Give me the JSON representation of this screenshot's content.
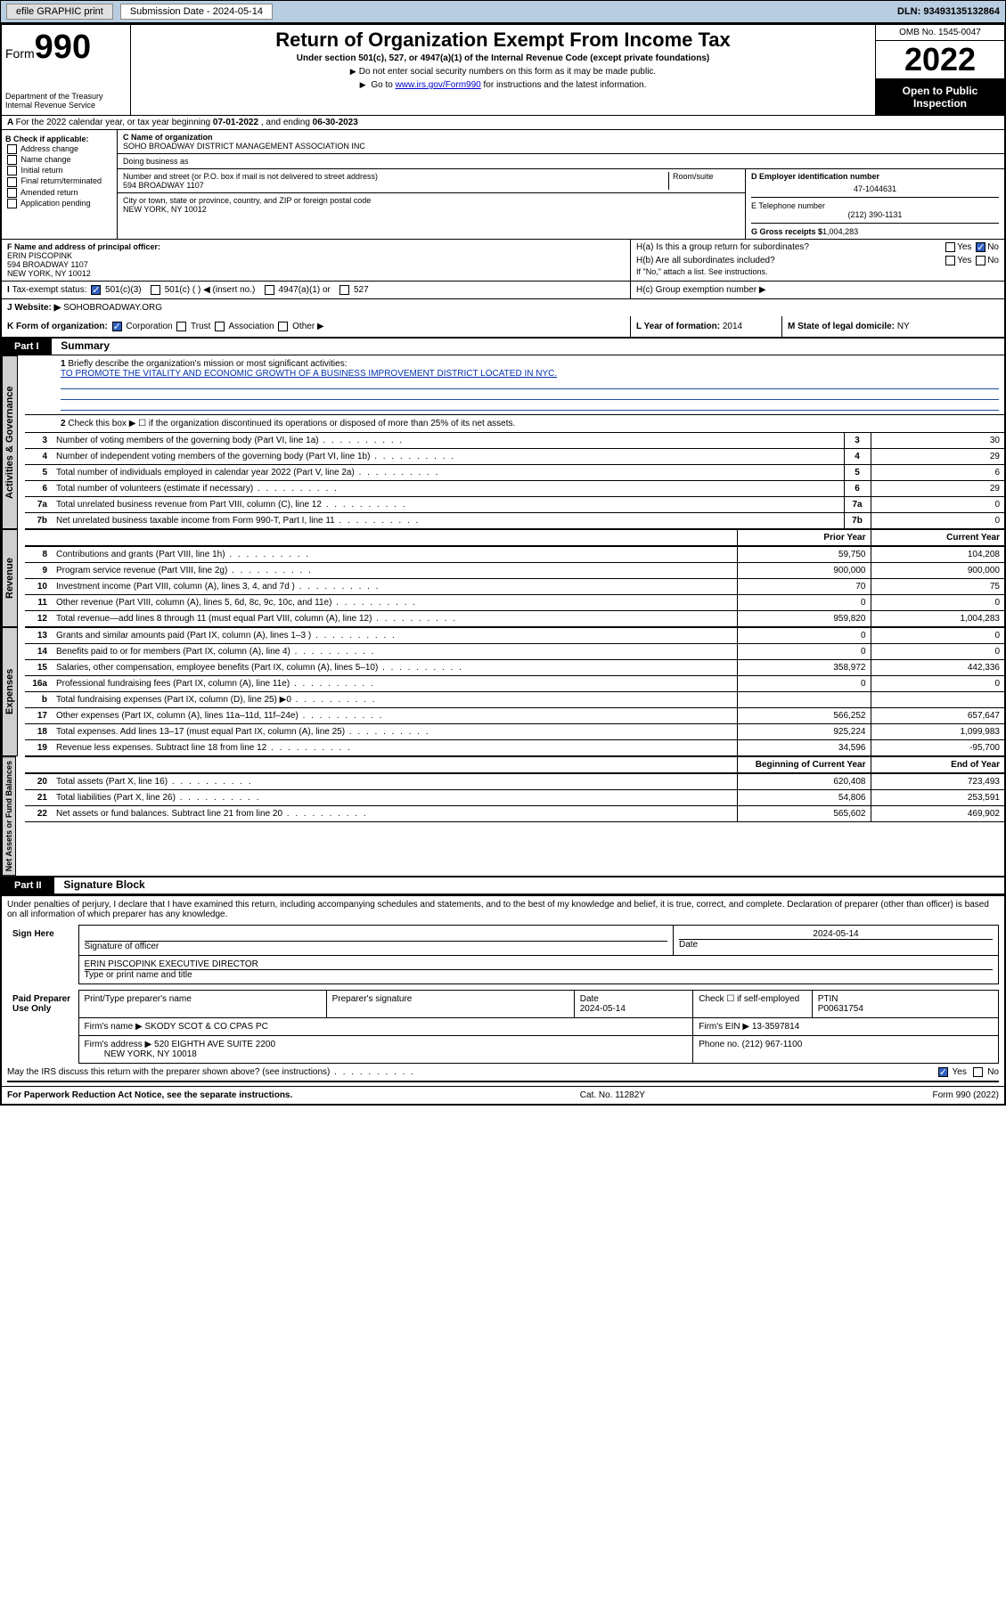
{
  "topbar": {
    "efile": "efile GRAPHIC print",
    "submission_label": "Submission Date - 2024-05-14",
    "dln": "DLN: 93493135132864"
  },
  "header": {
    "form_label": "Form",
    "form_number": "990",
    "dept": "Department of the Treasury",
    "irs": "Internal Revenue Service",
    "title": "Return of Organization Exempt From Income Tax",
    "subtitle1": "Under section 501(c), 527, or 4947(a)(1) of the Internal Revenue Code (except private foundations)",
    "subtitle2": "Do not enter social security numbers on this form as it may be made public.",
    "subtitle3_pre": "Go to ",
    "subtitle3_link": "www.irs.gov/Form990",
    "subtitle3_post": " for instructions and the latest information.",
    "omb": "OMB No. 1545-0047",
    "year": "2022",
    "inspect": "Open to Public Inspection"
  },
  "row_a": {
    "pre": "For the 2022 calendar year, or tax year beginning ",
    "begin": "07-01-2022",
    "mid": " , and ending ",
    "end": "06-30-2023"
  },
  "col_b": {
    "title": "B Check if applicable:",
    "items": [
      "Address change",
      "Name change",
      "Initial return",
      "Final return/terminated",
      "Amended return",
      "Application pending"
    ]
  },
  "col_c": {
    "name_lbl": "C Name of organization",
    "name": "SOHO BROADWAY DISTRICT MANAGEMENT ASSOCIATION INC",
    "dba_lbl": "Doing business as",
    "addr_lbl": "Number and street (or P.O. box if mail is not delivered to street address)",
    "room_lbl": "Room/suite",
    "addr": "594 BROADWAY 1107",
    "city_lbl": "City or town, state or province, country, and ZIP or foreign postal code",
    "city": "NEW YORK, NY  10012"
  },
  "col_d": {
    "ein_lbl": "D Employer identification number",
    "ein": "47-1044631",
    "phone_lbl": "E Telephone number",
    "phone": "(212) 390-1131",
    "gross_lbl": "G Gross receipts $",
    "gross": "1,004,283"
  },
  "officer": {
    "f_lbl": "F Name and address of principal officer:",
    "name": "ERIN PISCOPINK",
    "addr1": "594 BROADWAY 1107",
    "addr2": "NEW YORK, NY  10012",
    "ha": "H(a)  Is this a group return for subordinates?",
    "hb": "H(b)  Are all subordinates included?",
    "hb_note": "If \"No,\" attach a list. See instructions.",
    "hc": "H(c)  Group exemption number ▶",
    "yes": "Yes",
    "no": "No"
  },
  "row_i": {
    "lbl": "Tax-exempt status:",
    "opt1": "501(c)(3)",
    "opt2": "501(c) (  ) ◀ (insert no.)",
    "opt3": "4947(a)(1) or",
    "opt4": "527"
  },
  "row_j": {
    "lbl": "Website: ▶",
    "val": "SOHOBROADWAY.ORG"
  },
  "row_k": {
    "lbl": "K Form of organization:",
    "opts": [
      "Corporation",
      "Trust",
      "Association",
      "Other ▶"
    ],
    "l_lbl": "L Year of formation:",
    "l_val": "2014",
    "m_lbl": "M State of legal domicile:",
    "m_val": "NY"
  },
  "part1": {
    "hdr": "Part I",
    "title": "Summary",
    "q1_lbl": "Briefly describe the organization's mission or most significant activities:",
    "q1_ans": "TO PROMOTE THE VITALITY AND ECONOMIC GROWTH OF A BUSINESS IMPROVEMENT DISTRICT LOCATED IN NYC.",
    "q2": "Check this box ▶ ☐  if the organization discontinued its operations or disposed of more than 25% of its net assets."
  },
  "gov_tab": "Activities & Governance",
  "gov_rows": [
    {
      "n": "3",
      "t": "Number of voting members of the governing body (Part VI, line 1a)",
      "v": "30"
    },
    {
      "n": "4",
      "t": "Number of independent voting members of the governing body (Part VI, line 1b)",
      "v": "29"
    },
    {
      "n": "5",
      "t": "Total number of individuals employed in calendar year 2022 (Part V, line 2a)",
      "v": "6"
    },
    {
      "n": "6",
      "t": "Total number of volunteers (estimate if necessary)",
      "v": "29"
    },
    {
      "n": "7a",
      "t": "Total unrelated business revenue from Part VIII, column (C), line 12",
      "v": "0"
    },
    {
      "n": "7b",
      "t": "Net unrelated business taxable income from Form 990-T, Part I, line 11",
      "v": "0"
    }
  ],
  "rev_tab": "Revenue",
  "col_hdrs": {
    "prior": "Prior Year",
    "curr": "Current Year"
  },
  "rev_rows": [
    {
      "n": "8",
      "t": "Contributions and grants (Part VIII, line 1h)",
      "p": "59,750",
      "c": "104,208"
    },
    {
      "n": "9",
      "t": "Program service revenue (Part VIII, line 2g)",
      "p": "900,000",
      "c": "900,000"
    },
    {
      "n": "10",
      "t": "Investment income (Part VIII, column (A), lines 3, 4, and 7d )",
      "p": "70",
      "c": "75"
    },
    {
      "n": "11",
      "t": "Other revenue (Part VIII, column (A), lines 5, 6d, 8c, 9c, 10c, and 11e)",
      "p": "0",
      "c": "0"
    },
    {
      "n": "12",
      "t": "Total revenue—add lines 8 through 11 (must equal Part VIII, column (A), line 12)",
      "p": "959,820",
      "c": "1,004,283"
    }
  ],
  "exp_tab": "Expenses",
  "exp_rows": [
    {
      "n": "13",
      "t": "Grants and similar amounts paid (Part IX, column (A), lines 1–3 )",
      "p": "0",
      "c": "0"
    },
    {
      "n": "14",
      "t": "Benefits paid to or for members (Part IX, column (A), line 4)",
      "p": "0",
      "c": "0"
    },
    {
      "n": "15",
      "t": "Salaries, other compensation, employee benefits (Part IX, column (A), lines 5–10)",
      "p": "358,972",
      "c": "442,336"
    },
    {
      "n": "16a",
      "t": "Professional fundraising fees (Part IX, column (A), line 11e)",
      "p": "0",
      "c": "0"
    },
    {
      "n": "b",
      "t": "Total fundraising expenses (Part IX, column (D), line 25) ▶0",
      "p": "",
      "c": ""
    },
    {
      "n": "17",
      "t": "Other expenses (Part IX, column (A), lines 11a–11d, 11f–24e)",
      "p": "566,252",
      "c": "657,647"
    },
    {
      "n": "18",
      "t": "Total expenses. Add lines 13–17 (must equal Part IX, column (A), line 25)",
      "p": "925,224",
      "c": "1,099,983"
    },
    {
      "n": "19",
      "t": "Revenue less expenses. Subtract line 18 from line 12",
      "p": "34,596",
      "c": "-95,700"
    }
  ],
  "net_tab": "Net Assets or Fund Balances",
  "net_hdrs": {
    "prior": "Beginning of Current Year",
    "curr": "End of Year"
  },
  "net_rows": [
    {
      "n": "20",
      "t": "Total assets (Part X, line 16)",
      "p": "620,408",
      "c": "723,493"
    },
    {
      "n": "21",
      "t": "Total liabilities (Part X, line 26)",
      "p": "54,806",
      "c": "253,591"
    },
    {
      "n": "22",
      "t": "Net assets or fund balances. Subtract line 21 from line 20",
      "p": "565,602",
      "c": "469,902"
    }
  ],
  "part2": {
    "hdr": "Part II",
    "title": "Signature Block",
    "decl": "Under penalties of perjury, I declare that I have examined this return, including accompanying schedules and statements, and to the best of my knowledge and belief, it is true, correct, and complete. Declaration of preparer (other than officer) is based on all information of which preparer has any knowledge."
  },
  "sign": {
    "here": "Sign Here",
    "sig_lbl": "Signature of officer",
    "date_lbl": "Date",
    "date": "2024-05-14",
    "name": "ERIN PISCOPINK  EXECUTIVE DIRECTOR",
    "name_lbl": "Type or print name and title"
  },
  "paid": {
    "title": "Paid Preparer Use Only",
    "prep_name_lbl": "Print/Type preparer's name",
    "prep_sig_lbl": "Preparer's signature",
    "date_lbl": "Date",
    "date": "2024-05-14",
    "check_lbl": "Check ☐ if self-employed",
    "ptin_lbl": "PTIN",
    "ptin": "P00631754",
    "firm_name_lbl": "Firm's name    ▶",
    "firm_name": "SKODY SCOT & CO CPAS PC",
    "firm_ein_lbl": "Firm's EIN ▶",
    "firm_ein": "13-3597814",
    "firm_addr_lbl": "Firm's address ▶",
    "firm_addr1": "520 EIGHTH AVE SUITE 2200",
    "firm_addr2": "NEW YORK, NY 10018",
    "phone_lbl": "Phone no.",
    "phone": "(212) 967-1100"
  },
  "may_discuss": {
    "q": "May the IRS discuss this return with the preparer shown above? (see instructions)",
    "yes": "Yes",
    "no": "No"
  },
  "footer": {
    "l": "For Paperwork Reduction Act Notice, see the separate instructions.",
    "m": "Cat. No. 11282Y",
    "r": "Form 990 (2022)"
  }
}
